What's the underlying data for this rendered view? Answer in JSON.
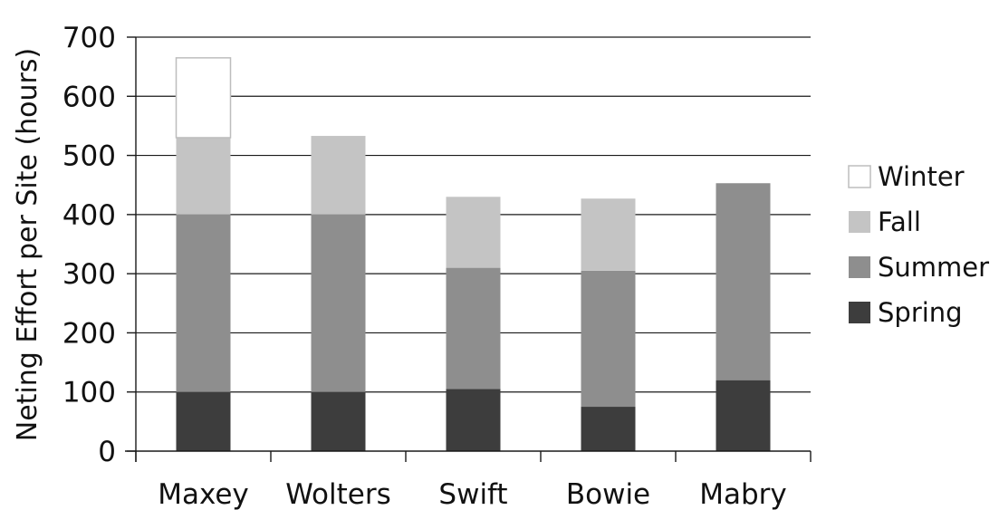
{
  "chart_data": {
    "type": "bar",
    "stacked": true,
    "categories": [
      "Maxey",
      "Wolters",
      "Swift",
      "Bowie",
      "Mabry"
    ],
    "series": [
      {
        "name": "Spring",
        "values": [
          100,
          100,
          105,
          75,
          120
        ],
        "color": "#3d3d3d"
      },
      {
        "name": "Summer",
        "values": [
          300,
          300,
          205,
          230,
          333
        ],
        "color": "#8e8e8e"
      },
      {
        "name": "Fall",
        "values": [
          130,
          133,
          120,
          122,
          0
        ],
        "color": "#c4c4c4"
      },
      {
        "name": "Winter",
        "values": [
          135,
          0,
          0,
          0,
          0
        ],
        "color": "#ffffff"
      }
    ],
    "legend_order": [
      "Winter",
      "Fall",
      "Summer",
      "Spring"
    ],
    "title": "",
    "xlabel": "",
    "ylabel": "Neting Effort per Site (hours)",
    "ylim": [
      0,
      700
    ],
    "yticks": [
      0,
      100,
      200,
      300,
      400,
      500,
      600,
      700
    ],
    "grid": true,
    "legend_position": "right"
  }
}
